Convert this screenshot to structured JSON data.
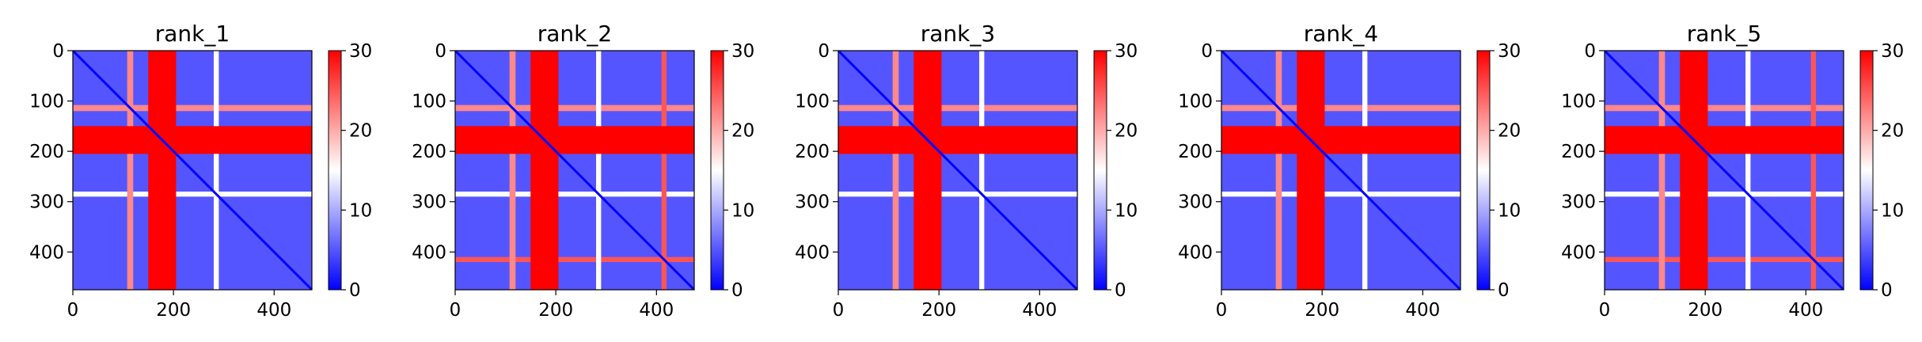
{
  "chart_data": [
    {
      "type": "heatmap",
      "title": "rank_1",
      "size": 475,
      "xticks": [
        0,
        200,
        400
      ],
      "yticks": [
        0,
        100,
        200,
        300,
        400
      ],
      "colorbar": {
        "min": 0,
        "max": 30,
        "ticks": [
          0,
          10,
          20,
          30
        ],
        "colormap": "bwr",
        "colors": [
          "#0000ff",
          "#ffffff",
          "#ff0000"
        ]
      },
      "bands": [
        {
          "start": 150,
          "end": 205,
          "value": 30
        },
        {
          "start": 108,
          "end": 120,
          "value": 22
        },
        {
          "start": 280,
          "end": 290,
          "value": 15
        }
      ]
    },
    {
      "type": "heatmap",
      "title": "rank_2",
      "size": 475,
      "xticks": [
        0,
        200,
        400
      ],
      "yticks": [
        0,
        100,
        200,
        300,
        400
      ],
      "colorbar": {
        "min": 0,
        "max": 30,
        "ticks": [
          0,
          10,
          20,
          30
        ],
        "colormap": "bwr",
        "colors": [
          "#0000ff",
          "#ffffff",
          "#ff0000"
        ]
      },
      "bands": [
        {
          "start": 150,
          "end": 205,
          "value": 30
        },
        {
          "start": 108,
          "end": 120,
          "value": 22
        },
        {
          "start": 280,
          "end": 290,
          "value": 15
        },
        {
          "start": 410,
          "end": 420,
          "value": 25
        }
      ]
    },
    {
      "type": "heatmap",
      "title": "rank_3",
      "size": 475,
      "xticks": [
        0,
        200,
        400
      ],
      "yticks": [
        0,
        100,
        200,
        300,
        400
      ],
      "colorbar": {
        "min": 0,
        "max": 30,
        "ticks": [
          0,
          10,
          20,
          30
        ],
        "colormap": "bwr",
        "colors": [
          "#0000ff",
          "#ffffff",
          "#ff0000"
        ]
      },
      "bands": [
        {
          "start": 150,
          "end": 205,
          "value": 30
        },
        {
          "start": 108,
          "end": 120,
          "value": 22
        },
        {
          "start": 280,
          "end": 290,
          "value": 15
        }
      ]
    },
    {
      "type": "heatmap",
      "title": "rank_4",
      "size": 475,
      "xticks": [
        0,
        200,
        400
      ],
      "yticks": [
        0,
        100,
        200,
        300,
        400
      ],
      "colorbar": {
        "min": 0,
        "max": 30,
        "ticks": [
          0,
          10,
          20,
          30
        ],
        "colormap": "bwr",
        "colors": [
          "#0000ff",
          "#ffffff",
          "#ff0000"
        ]
      },
      "bands": [
        {
          "start": 150,
          "end": 205,
          "value": 30
        },
        {
          "start": 108,
          "end": 120,
          "value": 22
        },
        {
          "start": 280,
          "end": 290,
          "value": 15
        }
      ]
    },
    {
      "type": "heatmap",
      "title": "rank_5",
      "size": 475,
      "xticks": [
        0,
        200,
        400
      ],
      "yticks": [
        0,
        100,
        200,
        300,
        400
      ],
      "colorbar": {
        "min": 0,
        "max": 30,
        "ticks": [
          0,
          10,
          20,
          30
        ],
        "colormap": "bwr",
        "colors": [
          "#0000ff",
          "#ffffff",
          "#ff0000"
        ]
      },
      "bands": [
        {
          "start": 150,
          "end": 205,
          "value": 30
        },
        {
          "start": 108,
          "end": 120,
          "value": 22
        },
        {
          "start": 280,
          "end": 290,
          "value": 15
        },
        {
          "start": 410,
          "end": 420,
          "value": 25
        }
      ]
    }
  ]
}
